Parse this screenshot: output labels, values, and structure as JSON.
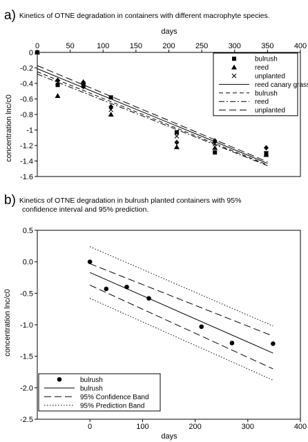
{
  "panel_a": {
    "letter": "a)",
    "title": "Kinetics of OTNE degradation in containers with different macrophyte species."
  },
  "panel_b": {
    "letter": "b)",
    "title_line1": "Kinetics of OTNE degradation in bulrush planted containers with 95%",
    "title_line2": "confidence interval and 95% prediction."
  },
  "chart_data": [
    {
      "type": "scatter",
      "xlabel": "days",
      "ylabel": "concentration lnc/c0",
      "x_axis_position": "top",
      "xlim": [
        0,
        400
      ],
      "ylim": [
        -1.6,
        0
      ],
      "x_ticks": [
        0,
        50,
        100,
        150,
        200,
        250,
        300,
        350,
        400
      ],
      "y_ticks": [
        0,
        -0.2,
        -0.4,
        -0.6,
        -0.8,
        -1,
        -1.2,
        -1.4,
        -1.6
      ],
      "legend_position": "top-right",
      "series": [
        {
          "name": "bulrush",
          "kind": "points",
          "marker": "square",
          "x": [
            0,
            31,
            70,
            112,
            212,
            270,
            348
          ],
          "y": [
            0,
            -0.42,
            -0.4,
            -0.58,
            -1.03,
            -1.29,
            -1.3
          ]
        },
        {
          "name": "reed",
          "kind": "points",
          "marker": "triangle",
          "x": [
            0,
            31,
            70,
            112,
            212,
            270,
            348
          ],
          "y": [
            0,
            -0.56,
            -0.38,
            -0.8,
            -1.22,
            -1.23,
            -1.32
          ]
        },
        {
          "name": "unplanted",
          "kind": "points",
          "marker": "x",
          "x": [
            0,
            31,
            70,
            112,
            212,
            270,
            348
          ],
          "y": [
            0,
            -0.39,
            -0.43,
            -0.74,
            -1.08,
            -1.18,
            -1.3
          ]
        },
        {
          "name": "",
          "kind": "points",
          "marker": "diamond",
          "x": [
            0,
            31,
            70,
            112,
            212,
            270,
            348
          ],
          "y": [
            0,
            -0.36,
            -0.44,
            -0.7,
            -1.16,
            -1.14,
            -1.23
          ]
        },
        {
          "name": "reed canary grass",
          "kind": "line",
          "dash": "solid",
          "x": [
            0,
            350
          ],
          "y": [
            -0.21,
            -1.43
          ]
        },
        {
          "name": "bulrush",
          "kind": "line",
          "dash": "dash",
          "x": [
            0,
            350
          ],
          "y": [
            -0.25,
            -1.45
          ]
        },
        {
          "name": "reed",
          "kind": "line",
          "dash": "dashdot",
          "x": [
            0,
            350
          ],
          "y": [
            -0.28,
            -1.46
          ]
        },
        {
          "name": "unplanted",
          "kind": "line",
          "dash": "longdash",
          "x": [
            0,
            350
          ],
          "y": [
            -0.17,
            -1.41
          ]
        }
      ]
    },
    {
      "type": "scatter",
      "xlabel": "days",
      "ylabel": "concentration lnc/c0",
      "xlim": [
        -100,
        400
      ],
      "ylim": [
        -2.5,
        0.5
      ],
      "x_ticks": [
        0,
        100,
        200,
        300,
        400
      ],
      "y_ticks": [
        0.5,
        0.0,
        -0.5,
        -1.0,
        -1.5,
        -2.0,
        -2.5
      ],
      "legend_position": "bottom-left",
      "series": [
        {
          "name": "bulrush",
          "kind": "points",
          "marker": "circle",
          "x": [
            0,
            31,
            70,
            112,
            212,
            270,
            348
          ],
          "y": [
            0,
            -0.43,
            -0.4,
            -0.58,
            -1.03,
            -1.29,
            -1.3
          ]
        },
        {
          "name": "bulrush",
          "kind": "line",
          "dash": "solid",
          "x": [
            0,
            348
          ],
          "y": [
            -0.17,
            -1.45
          ]
        },
        {
          "name": "95% Confidence Band",
          "kind": "line",
          "dash": "longdash",
          "x": [
            0,
            348
          ],
          "y": [
            -0.03,
            -1.18
          ]
        },
        {
          "name": "95% Confidence Band",
          "kind": "line",
          "dash": "longdash",
          "x": [
            0,
            348
          ],
          "y": [
            -0.37,
            -1.7
          ]
        },
        {
          "name": "95% Prediction Band",
          "kind": "line",
          "dash": "dot",
          "x": [
            0,
            348
          ],
          "y": [
            0.24,
            -1.02
          ]
        },
        {
          "name": "95% Prediction Band",
          "kind": "line",
          "dash": "dot",
          "x": [
            0,
            348
          ],
          "y": [
            -0.58,
            -1.88
          ]
        }
      ]
    }
  ]
}
